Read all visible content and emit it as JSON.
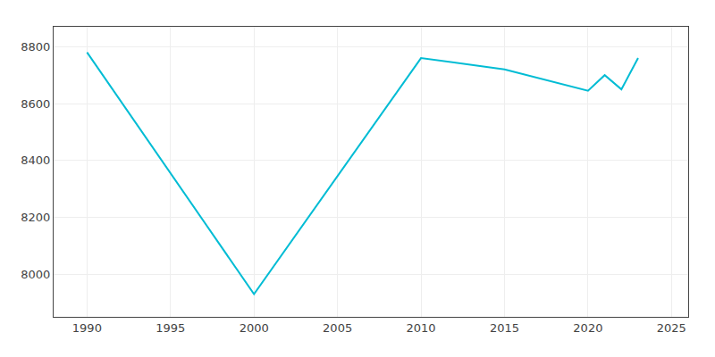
{
  "chart_data": {
    "type": "line",
    "x": [
      1990,
      2000,
      2010,
      2015,
      2020,
      2021,
      2022,
      2023
    ],
    "values": [
      8780,
      7930,
      8760,
      8720,
      8645,
      8700,
      8650,
      8760
    ],
    "color": "#00bcd4",
    "xlim": [
      1988,
      2026
    ],
    "ylim": [
      7850,
      8870
    ],
    "xticks": [
      1990,
      1995,
      2000,
      2005,
      2010,
      2015,
      2020,
      2025
    ],
    "yticks": [
      8000,
      8200,
      8400,
      8600,
      8800
    ],
    "grid": true
  }
}
